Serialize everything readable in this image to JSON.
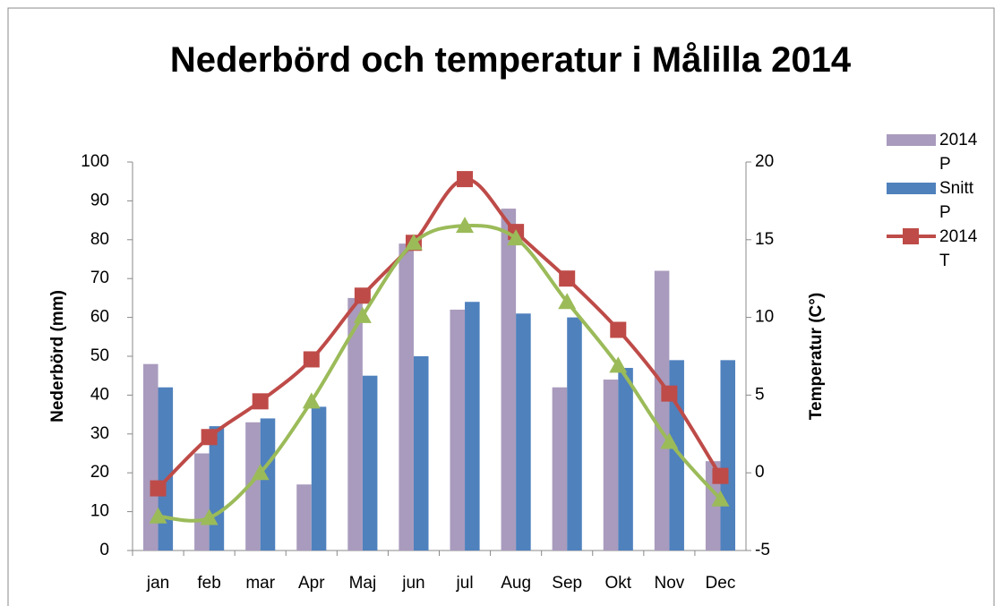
{
  "chart_data": {
    "type": "bar-line",
    "title": "Nederbörd och temperatur i Målilla 2014",
    "y_label": "Nederbörd (mm)",
    "y2_label": "Temperatur (C°)",
    "categories": [
      "jan",
      "feb",
      "mar",
      "Apr",
      "Maj",
      "jun",
      "jul",
      "Aug",
      "Sep",
      "Okt",
      "Nov",
      "Dec"
    ],
    "ylim": [
      0,
      100
    ],
    "yticks": [
      0,
      10,
      20,
      30,
      40,
      50,
      60,
      70,
      80,
      90,
      100
    ],
    "y2lim": [
      -5,
      20
    ],
    "y2ticks": [
      -5,
      0,
      5,
      10,
      15,
      20
    ],
    "grid": false,
    "legend": "right",
    "series": [
      {
        "name": "2014 P",
        "type": "bar",
        "color": "#a99bbd",
        "values": [
          48,
          25,
          33,
          17,
          65,
          79,
          62,
          88,
          42,
          44,
          72,
          23
        ]
      },
      {
        "name": "Snitt P",
        "type": "bar",
        "color": "#4f81bd",
        "values": [
          42,
          32,
          34,
          37,
          45,
          50,
          64,
          61,
          60,
          47,
          49,
          49
        ]
      },
      {
        "name": "2014 T",
        "type": "line",
        "axis": "y2",
        "marker": "square",
        "color": "#be4b48",
        "values": [
          -1.0,
          2.3,
          4.6,
          7.3,
          11.4,
          14.8,
          18.9,
          15.5,
          12.5,
          9.2,
          5.1,
          -0.2
        ]
      },
      {
        "type": "line",
        "axis": "y2",
        "marker": "triangle",
        "color": "#9bbb59",
        "values": [
          -2.8,
          -2.9,
          0.0,
          4.6,
          10.1,
          14.8,
          15.9,
          15.1,
          11.0,
          6.9,
          2.0,
          -1.7
        ]
      }
    ]
  }
}
